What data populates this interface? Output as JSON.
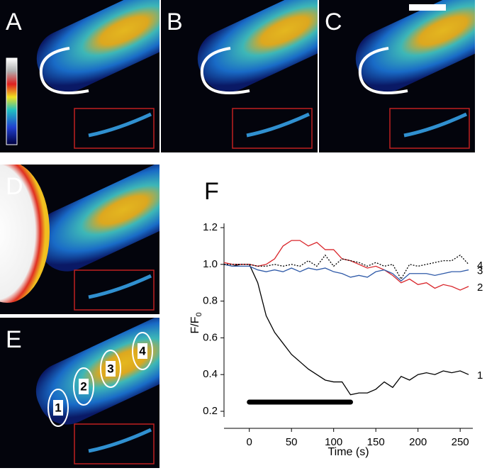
{
  "figure": {
    "panel_labels": [
      "A",
      "B",
      "C",
      "D",
      "E",
      "F"
    ],
    "roi_labels": [
      "1",
      "2",
      "3",
      "4"
    ]
  },
  "chart_data": {
    "type": "line",
    "xlabel": "Time (s)",
    "ylabel": {
      "main": "F/F",
      "sub": "0"
    },
    "x": [
      -30,
      -20,
      -10,
      0,
      10,
      20,
      30,
      40,
      50,
      60,
      70,
      80,
      90,
      100,
      110,
      120,
      130,
      140,
      150,
      160,
      170,
      180,
      190,
      200,
      210,
      220,
      230,
      240,
      250,
      260
    ],
    "series": [
      {
        "name": "1",
        "color": "#000000",
        "dash": false,
        "values": [
          1.0,
          0.99,
          1.0,
          1.0,
          0.9,
          0.72,
          0.63,
          0.57,
          0.51,
          0.47,
          0.43,
          0.4,
          0.37,
          0.36,
          0.36,
          0.29,
          0.3,
          0.3,
          0.32,
          0.36,
          0.33,
          0.39,
          0.37,
          0.4,
          0.41,
          0.4,
          0.42,
          0.41,
          0.42,
          0.4
        ]
      },
      {
        "name": "2",
        "color": "#d9262b",
        "dash": false,
        "values": [
          1.01,
          1.0,
          1.0,
          1.0,
          0.99,
          1.0,
          1.03,
          1.1,
          1.13,
          1.13,
          1.1,
          1.12,
          1.08,
          1.08,
          1.03,
          1.02,
          1.0,
          0.98,
          0.99,
          0.97,
          0.94,
          0.9,
          0.92,
          0.89,
          0.9,
          0.87,
          0.89,
          0.88,
          0.86,
          0.88
        ]
      },
      {
        "name": "3",
        "color": "#2f5aa8",
        "dash": false,
        "values": [
          1.0,
          0.99,
          0.99,
          0.99,
          0.97,
          0.96,
          0.97,
          0.96,
          0.98,
          0.96,
          0.98,
          0.97,
          0.98,
          0.96,
          0.95,
          0.93,
          0.94,
          0.93,
          0.96,
          0.97,
          0.95,
          0.91,
          0.95,
          0.95,
          0.95,
          0.94,
          0.95,
          0.96,
          0.96,
          0.97
        ]
      },
      {
        "name": "4",
        "color": "#000000",
        "dash": true,
        "values": [
          1.0,
          1.0,
          1.0,
          1.0,
          0.99,
          0.99,
          1.0,
          0.99,
          1.0,
          0.99,
          1.02,
          0.99,
          1.05,
          0.99,
          1.03,
          1.02,
          1.01,
          0.99,
          1.01,
          0.99,
          1.0,
          0.92,
          1.0,
          0.99,
          1.0,
          1.01,
          1.02,
          1.02,
          1.05,
          1.0
        ]
      }
    ],
    "stimulus": {
      "x": [
        0,
        120
      ],
      "y": 0.25
    },
    "xlim": [
      -30,
      265
    ],
    "ylim": [
      0.2,
      1.2
    ],
    "xticks": [
      0,
      50,
      100,
      150,
      200,
      250
    ],
    "yticks": [
      0.2,
      0.4,
      0.6,
      0.8,
      {
        "value": 1,
        "label": "1.0"
      },
      1.2
    ]
  }
}
